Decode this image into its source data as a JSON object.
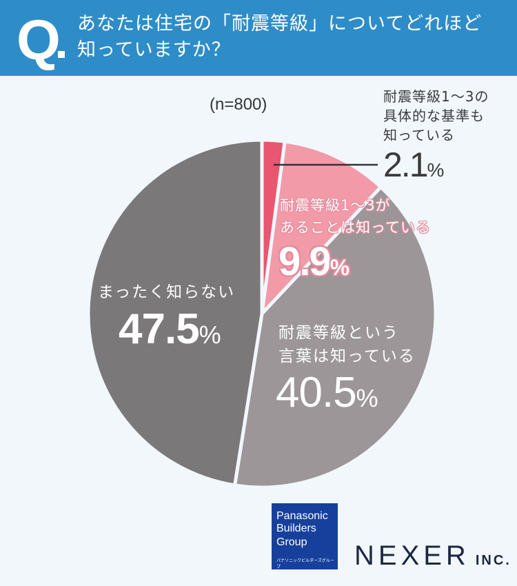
{
  "header": {
    "q_mark": "Q",
    "question": "あなたは住宅の「耐震等級」についてどれほど\n知っていますか？",
    "background_color": "#2e8dc8"
  },
  "sample_size": "(n=800)",
  "slices": [
    {
      "label": "耐震等級1〜3の\n具体的な基準も\n知っている",
      "value": "2.1",
      "unit": "%",
      "color": "#e8566f"
    },
    {
      "label": "耐震等級1〜3が\nあることは知っている",
      "value": "9.9",
      "unit": "%",
      "color": "#f39aa8"
    },
    {
      "label": "耐震等級という\n言葉は知っている",
      "value": "40.5",
      "unit": "%",
      "color": "#9c9699"
    },
    {
      "label": "まったく知らない",
      "value": "47.5",
      "unit": "%",
      "color": "#7b787a"
    }
  ],
  "chart_data": {
    "type": "pie",
    "title": "あなたは住宅の「耐震等級」についてどれほど知っていますか？",
    "subtitle": "(n=800)",
    "categories": [
      "耐震等級1〜3の具体的な基準も知っている",
      "耐震等級1〜3があることは知っている",
      "耐震等級という言葉は知っている",
      "まったく知らない"
    ],
    "values": [
      2.1,
      9.9,
      40.5,
      47.5
    ],
    "unit": "%",
    "start_angle": "12 o'clock, clockwise",
    "colors": [
      "#e8566f",
      "#f39aa8",
      "#9c9699",
      "#7b787a"
    ]
  },
  "logos": {
    "pbg_line1": "Panasonic\nBuilders",
    "pbg_line2": "Group",
    "pbg_line3": "パナソニックビルダーズグループ",
    "nexer": "NEXER",
    "nexer_suffix": "INC."
  }
}
